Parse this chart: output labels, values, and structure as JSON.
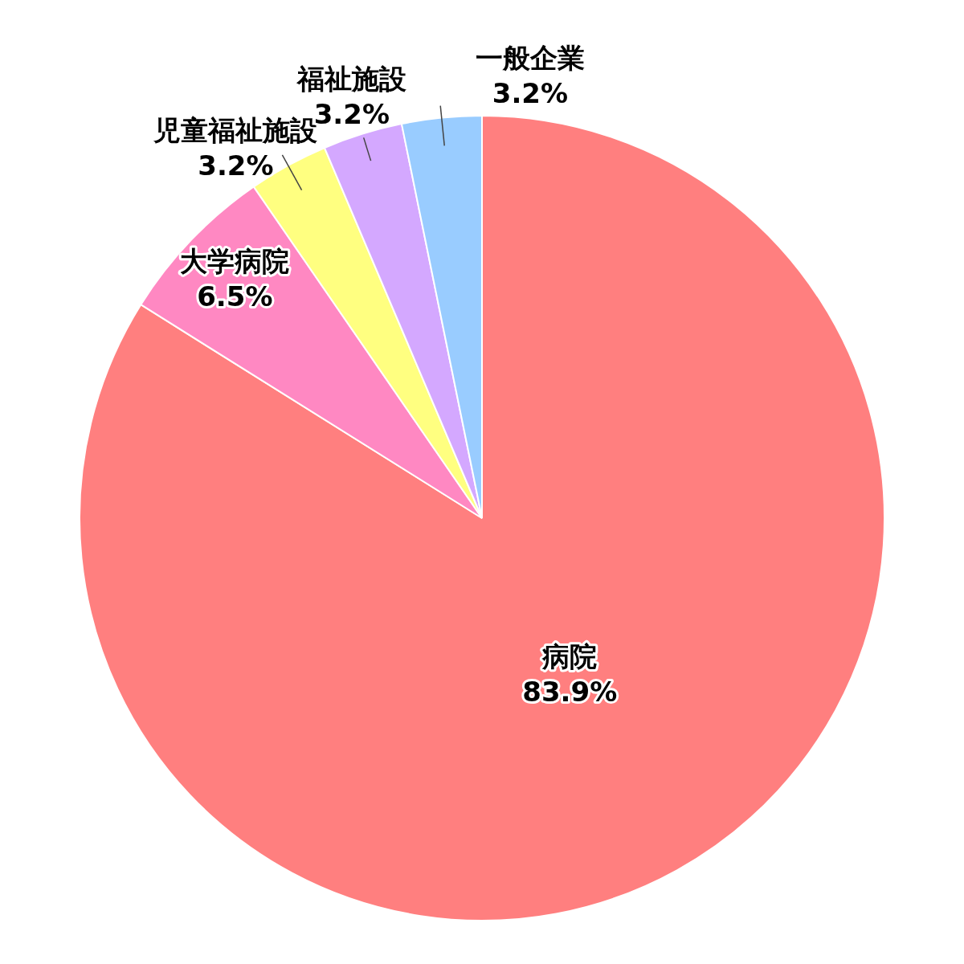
{
  "chart_data": {
    "type": "pie",
    "categories": [
      "病院",
      "大学病院",
      "児童福祉施設",
      "福祉施設",
      "一般企業"
    ],
    "values": [
      83.9,
      6.5,
      3.2,
      3.2,
      3.2
    ],
    "value_labels": [
      "83.9%",
      "6.5%",
      "3.2%",
      "3.2%",
      "3.2%"
    ],
    "colors": [
      "#ff7f7f",
      "#ff88c2",
      "#ffff80",
      "#d4a8ff",
      "#99ccff"
    ],
    "legend": false
  }
}
